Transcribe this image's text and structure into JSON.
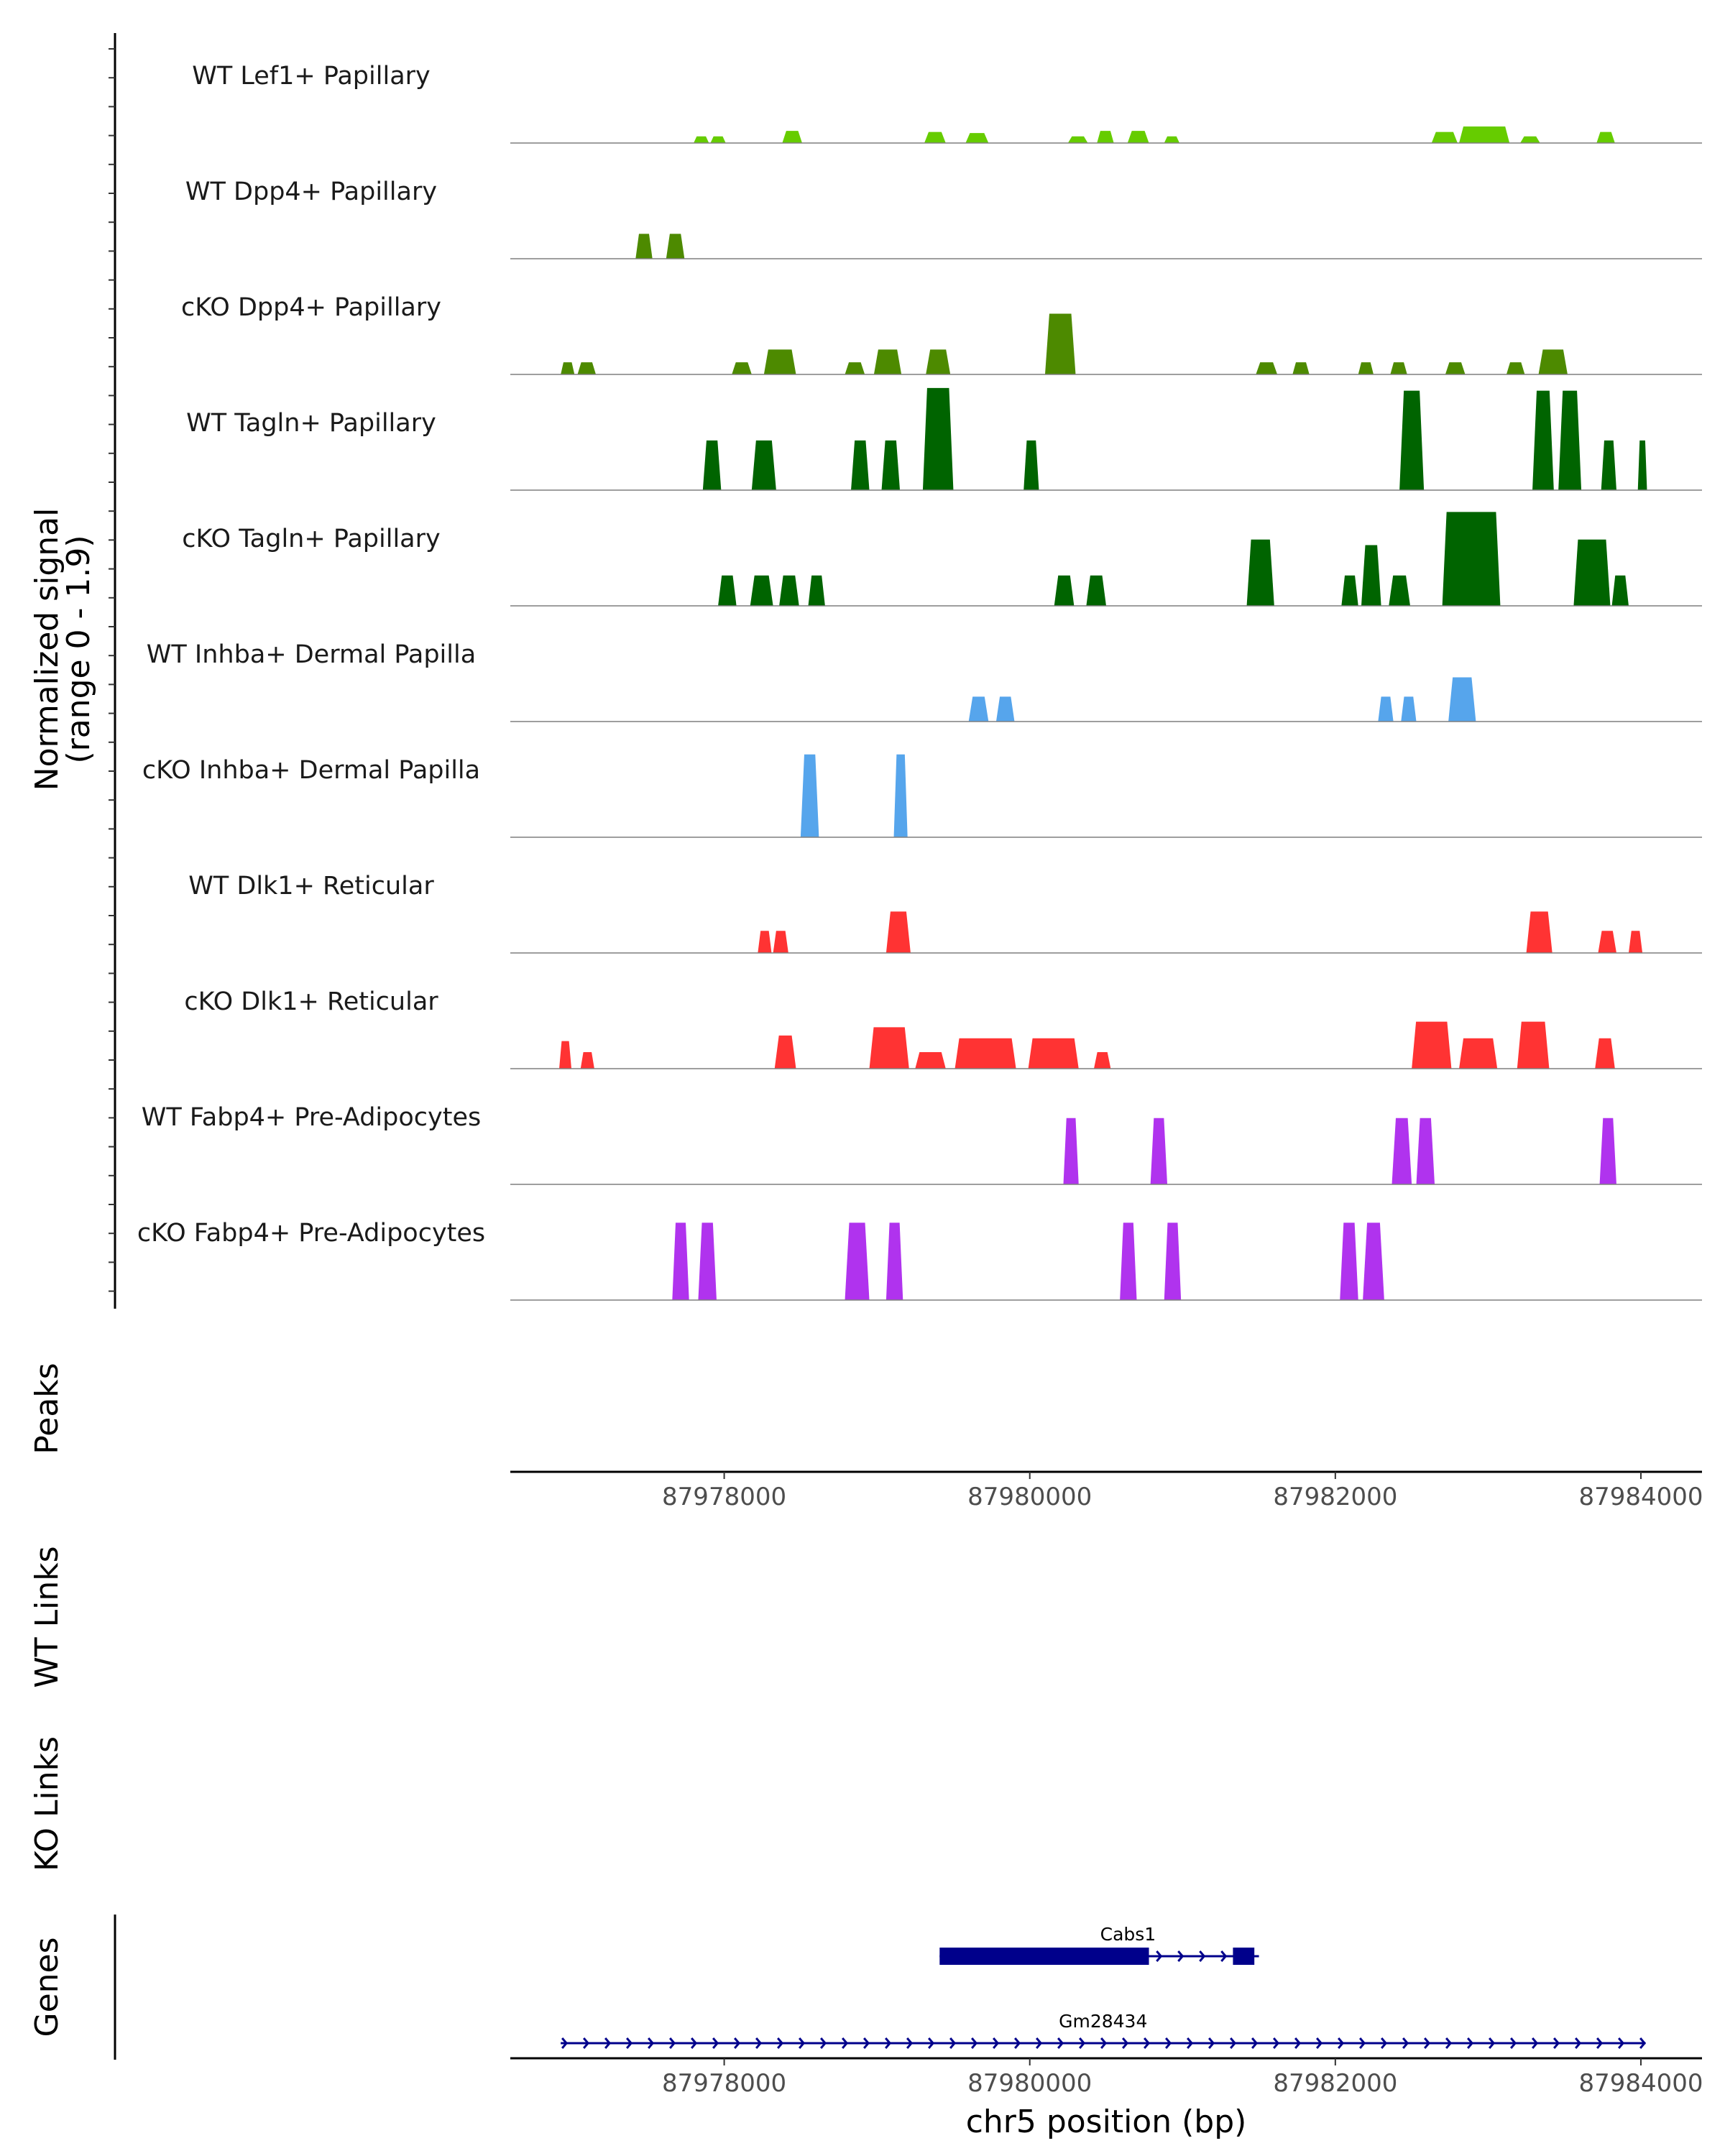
{
  "chart_data": {
    "type": "area",
    "title": "",
    "ylabel": "Normalized signal\n(range 0 - 1.9)",
    "xlabel": "chr5 position (bp)",
    "xlim": [
      87976600,
      87984400
    ],
    "ylim": [
      0,
      1.9
    ],
    "x_ticks": [
      87978000,
      87980000,
      87982000,
      87984000
    ],
    "x_tick_labels": [
      "87978000",
      "87980000",
      "87982000",
      "87984000"
    ],
    "tracks": [
      {
        "name": "WT Lef1+ Papillary",
        "color": "#66CC00",
        "regions": [
          [
            87977800,
            87977900,
            0.12
          ],
          [
            87977910,
            87978010,
            0.12
          ],
          [
            87978380,
            87978510,
            0.22
          ],
          [
            87979310,
            87979450,
            0.2
          ],
          [
            87979580,
            87979730,
            0.18
          ],
          [
            87980250,
            87980380,
            0.12
          ],
          [
            87980440,
            87980550,
            0.22
          ],
          [
            87980640,
            87980780,
            0.22
          ],
          [
            87980880,
            87980980,
            0.12
          ],
          [
            87982630,
            87982800,
            0.2
          ],
          [
            87982810,
            87983140,
            0.3
          ],
          [
            87983210,
            87983340,
            0.12
          ],
          [
            87983710,
            87983830,
            0.2
          ]
        ]
      },
      {
        "name": "WT Dpp4+ Papillary",
        "color": "#4D8A00",
        "regions": [
          [
            87977420,
            87977530,
            0.45
          ],
          [
            87977620,
            87977740,
            0.45
          ]
        ]
      },
      {
        "name": "cKO Dpp4+ Papillary",
        "color": "#4D8A00",
        "regions": [
          [
            87976930,
            87977020,
            0.22
          ],
          [
            87977040,
            87977160,
            0.22
          ],
          [
            87978050,
            87978180,
            0.22
          ],
          [
            87978260,
            87978470,
            0.45
          ],
          [
            87978790,
            87978920,
            0.22
          ],
          [
            87978980,
            87979160,
            0.45
          ],
          [
            87979320,
            87979480,
            0.45
          ],
          [
            87980100,
            87980300,
            1.1
          ],
          [
            87981480,
            87981620,
            0.22
          ],
          [
            87981720,
            87981830,
            0.22
          ],
          [
            87982150,
            87982250,
            0.22
          ],
          [
            87982360,
            87982470,
            0.22
          ],
          [
            87982720,
            87982850,
            0.22
          ],
          [
            87983120,
            87983240,
            0.22
          ],
          [
            87983330,
            87983520,
            0.45
          ]
        ]
      },
      {
        "name": "WT Tagln+ Papillary",
        "color": "#006400",
        "regions": [
          [
            87977860,
            87977980,
            0.9
          ],
          [
            87978180,
            87978340,
            0.9
          ],
          [
            87978830,
            87978950,
            0.9
          ],
          [
            87979030,
            87979150,
            0.9
          ],
          [
            87979300,
            87979500,
            1.85
          ],
          [
            87979960,
            87980060,
            0.9
          ],
          [
            87982420,
            87982580,
            1.8
          ],
          [
            87983290,
            87983430,
            1.8
          ],
          [
            87983460,
            87983610,
            1.8
          ],
          [
            87983740,
            87983840,
            0.9
          ],
          [
            87983980,
            87984040,
            0.9
          ]
        ]
      },
      {
        "name": "cKO Tagln+ Papillary",
        "color": "#006400",
        "regions": [
          [
            87977960,
            87978080,
            0.55
          ],
          [
            87978170,
            87978320,
            0.55
          ],
          [
            87978360,
            87978490,
            0.55
          ],
          [
            87978550,
            87978660,
            0.55
          ],
          [
            87980160,
            87980290,
            0.55
          ],
          [
            87980370,
            87980500,
            0.55
          ],
          [
            87981420,
            87981600,
            1.2
          ],
          [
            87982040,
            87982150,
            0.55
          ],
          [
            87982170,
            87982300,
            1.1
          ],
          [
            87982350,
            87982490,
            0.55
          ],
          [
            87982700,
            87983080,
            1.7
          ],
          [
            87983560,
            87983800,
            1.2
          ],
          [
            87983810,
            87983920,
            0.55
          ]
        ]
      },
      {
        "name": "WT Inhba+ Dermal Papilla",
        "color": "#56A5EC",
        "regions": [
          [
            87979600,
            87979730,
            0.45
          ],
          [
            87979780,
            87979900,
            0.45
          ],
          [
            87982280,
            87982380,
            0.45
          ],
          [
            87982430,
            87982530,
            0.45
          ],
          [
            87982740,
            87982920,
            0.8
          ]
        ]
      },
      {
        "name": "cKO Inhba+ Dermal Papilla",
        "color": "#56A5EC",
        "regions": [
          [
            87978500,
            87978620,
            1.5
          ],
          [
            87979110,
            87979200,
            1.5
          ]
        ]
      },
      {
        "name": "WT Dlk1+ Reticular",
        "color": "#FF3333",
        "regions": [
          [
            87978220,
            87978310,
            0.4
          ],
          [
            87978320,
            87978420,
            0.4
          ],
          [
            87979060,
            87979220,
            0.75
          ],
          [
            87983250,
            87983420,
            0.75
          ],
          [
            87983720,
            87983840,
            0.4
          ],
          [
            87983920,
            87984010,
            0.4
          ]
        ]
      },
      {
        "name": "cKO Dlk1+ Reticular",
        "color": "#FF3333",
        "regions": [
          [
            87976920,
            87977000,
            0.5
          ],
          [
            87977060,
            87977150,
            0.3
          ],
          [
            87978330,
            87978470,
            0.6
          ],
          [
            87978950,
            87979210,
            0.75
          ],
          [
            87979250,
            87979450,
            0.3
          ],
          [
            87979510,
            87979910,
            0.55
          ],
          [
            87979990,
            87980320,
            0.55
          ],
          [
            87980420,
            87980530,
            0.3
          ],
          [
            87982500,
            87982760,
            0.85
          ],
          [
            87982810,
            87983060,
            0.55
          ],
          [
            87983190,
            87983400,
            0.85
          ],
          [
            87983700,
            87983830,
            0.55
          ]
        ]
      },
      {
        "name": "WT Fabp4+ Pre-Adipocytes",
        "color": "#B033EE",
        "regions": [
          [
            87980220,
            87980320,
            1.2
          ],
          [
            87980790,
            87980900,
            1.2
          ],
          [
            87982370,
            87982500,
            1.2
          ],
          [
            87982530,
            87982650,
            1.2
          ],
          [
            87983730,
            87983840,
            1.2
          ]
        ]
      },
      {
        "name": "cKO Fabp4+ Pre-Adipocytes",
        "color": "#B033EE",
        "regions": [
          [
            87977660,
            87977770,
            1.4
          ],
          [
            87977830,
            87977950,
            1.4
          ],
          [
            87978790,
            87978950,
            1.4
          ],
          [
            87979060,
            87979170,
            1.4
          ],
          [
            87980590,
            87980700,
            1.4
          ],
          [
            87980880,
            87980990,
            1.4
          ],
          [
            87982030,
            87982150,
            1.4
          ],
          [
            87982180,
            87982320,
            1.4
          ]
        ]
      }
    ],
    "panels": [
      {
        "name": "Peaks",
        "label": "Peaks"
      },
      {
        "name": "WT Links",
        "label": "WT Links"
      },
      {
        "name": "KO Links",
        "label": "KO Links"
      },
      {
        "name": "Genes",
        "label": "Genes"
      }
    ],
    "genes": [
      {
        "name": "Cabs1",
        "start": 87979410,
        "end": 87981500,
        "strand": "+",
        "exons": [
          [
            87979410,
            87980780
          ],
          [
            87981330,
            87981470
          ]
        ]
      },
      {
        "name": "Gm28434",
        "start": 87976930,
        "end": 87984030,
        "strand": "+",
        "exons": []
      }
    ],
    "colors": {
      "axis": "#000000",
      "baseline": "#7f7f7f",
      "gene": "#00008B"
    }
  }
}
